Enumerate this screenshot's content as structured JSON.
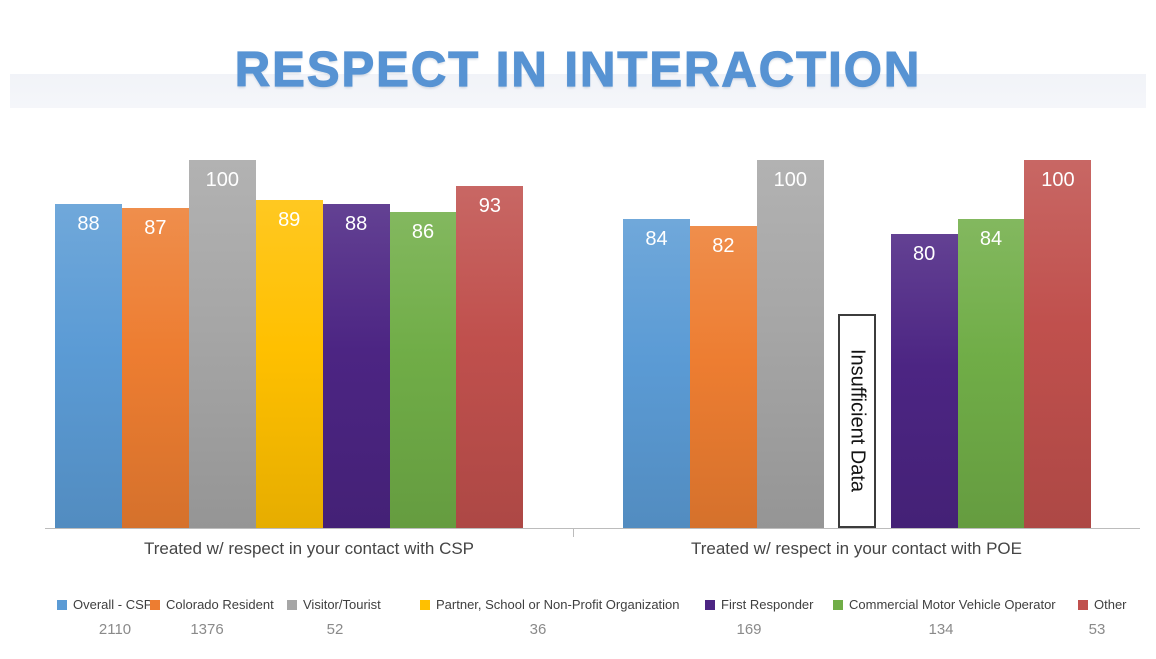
{
  "title": "RESPECT IN INTERACTION",
  "chart_data": {
    "type": "bar",
    "title": "RESPECT IN INTERACTION",
    "categories": [
      "Treated w/ respect in your contact with CSP",
      "Treated w/ respect in your contact with POE"
    ],
    "series": [
      {
        "name": "Overall - CSP",
        "count": "2110",
        "color": "#5B9BD5",
        "values": [
          88,
          84
        ]
      },
      {
        "name": "Colorado Resident",
        "count": "1376",
        "color": "#ED7D31",
        "values": [
          87,
          82
        ]
      },
      {
        "name": "Visitor/Tourist",
        "count": "52",
        "color": "#A6A6A6",
        "values": [
          100,
          100
        ]
      },
      {
        "name": "Partner, School or Non-Profit Organization",
        "count": "36",
        "color": "#FFC000",
        "values": [
          89,
          null
        ]
      },
      {
        "name": "First Responder",
        "count": "169",
        "color": "#4C2583",
        "values": [
          88,
          80
        ]
      },
      {
        "name": "Commercial Motor Vehicle Operator",
        "count": "134",
        "color": "#70AD47",
        "values": [
          86,
          84
        ]
      },
      {
        "name": "Other",
        "count": "53",
        "color": "#C0504D",
        "values": [
          93,
          100
        ]
      }
    ],
    "missing_value_annotation": "Insufficient Data",
    "value_labels": true,
    "ylim": [
      0,
      105
    ],
    "grid": false,
    "legend_position": "bottom",
    "accent_title_color": "#5793D3",
    "axis_color": "#BCBCBC"
  }
}
